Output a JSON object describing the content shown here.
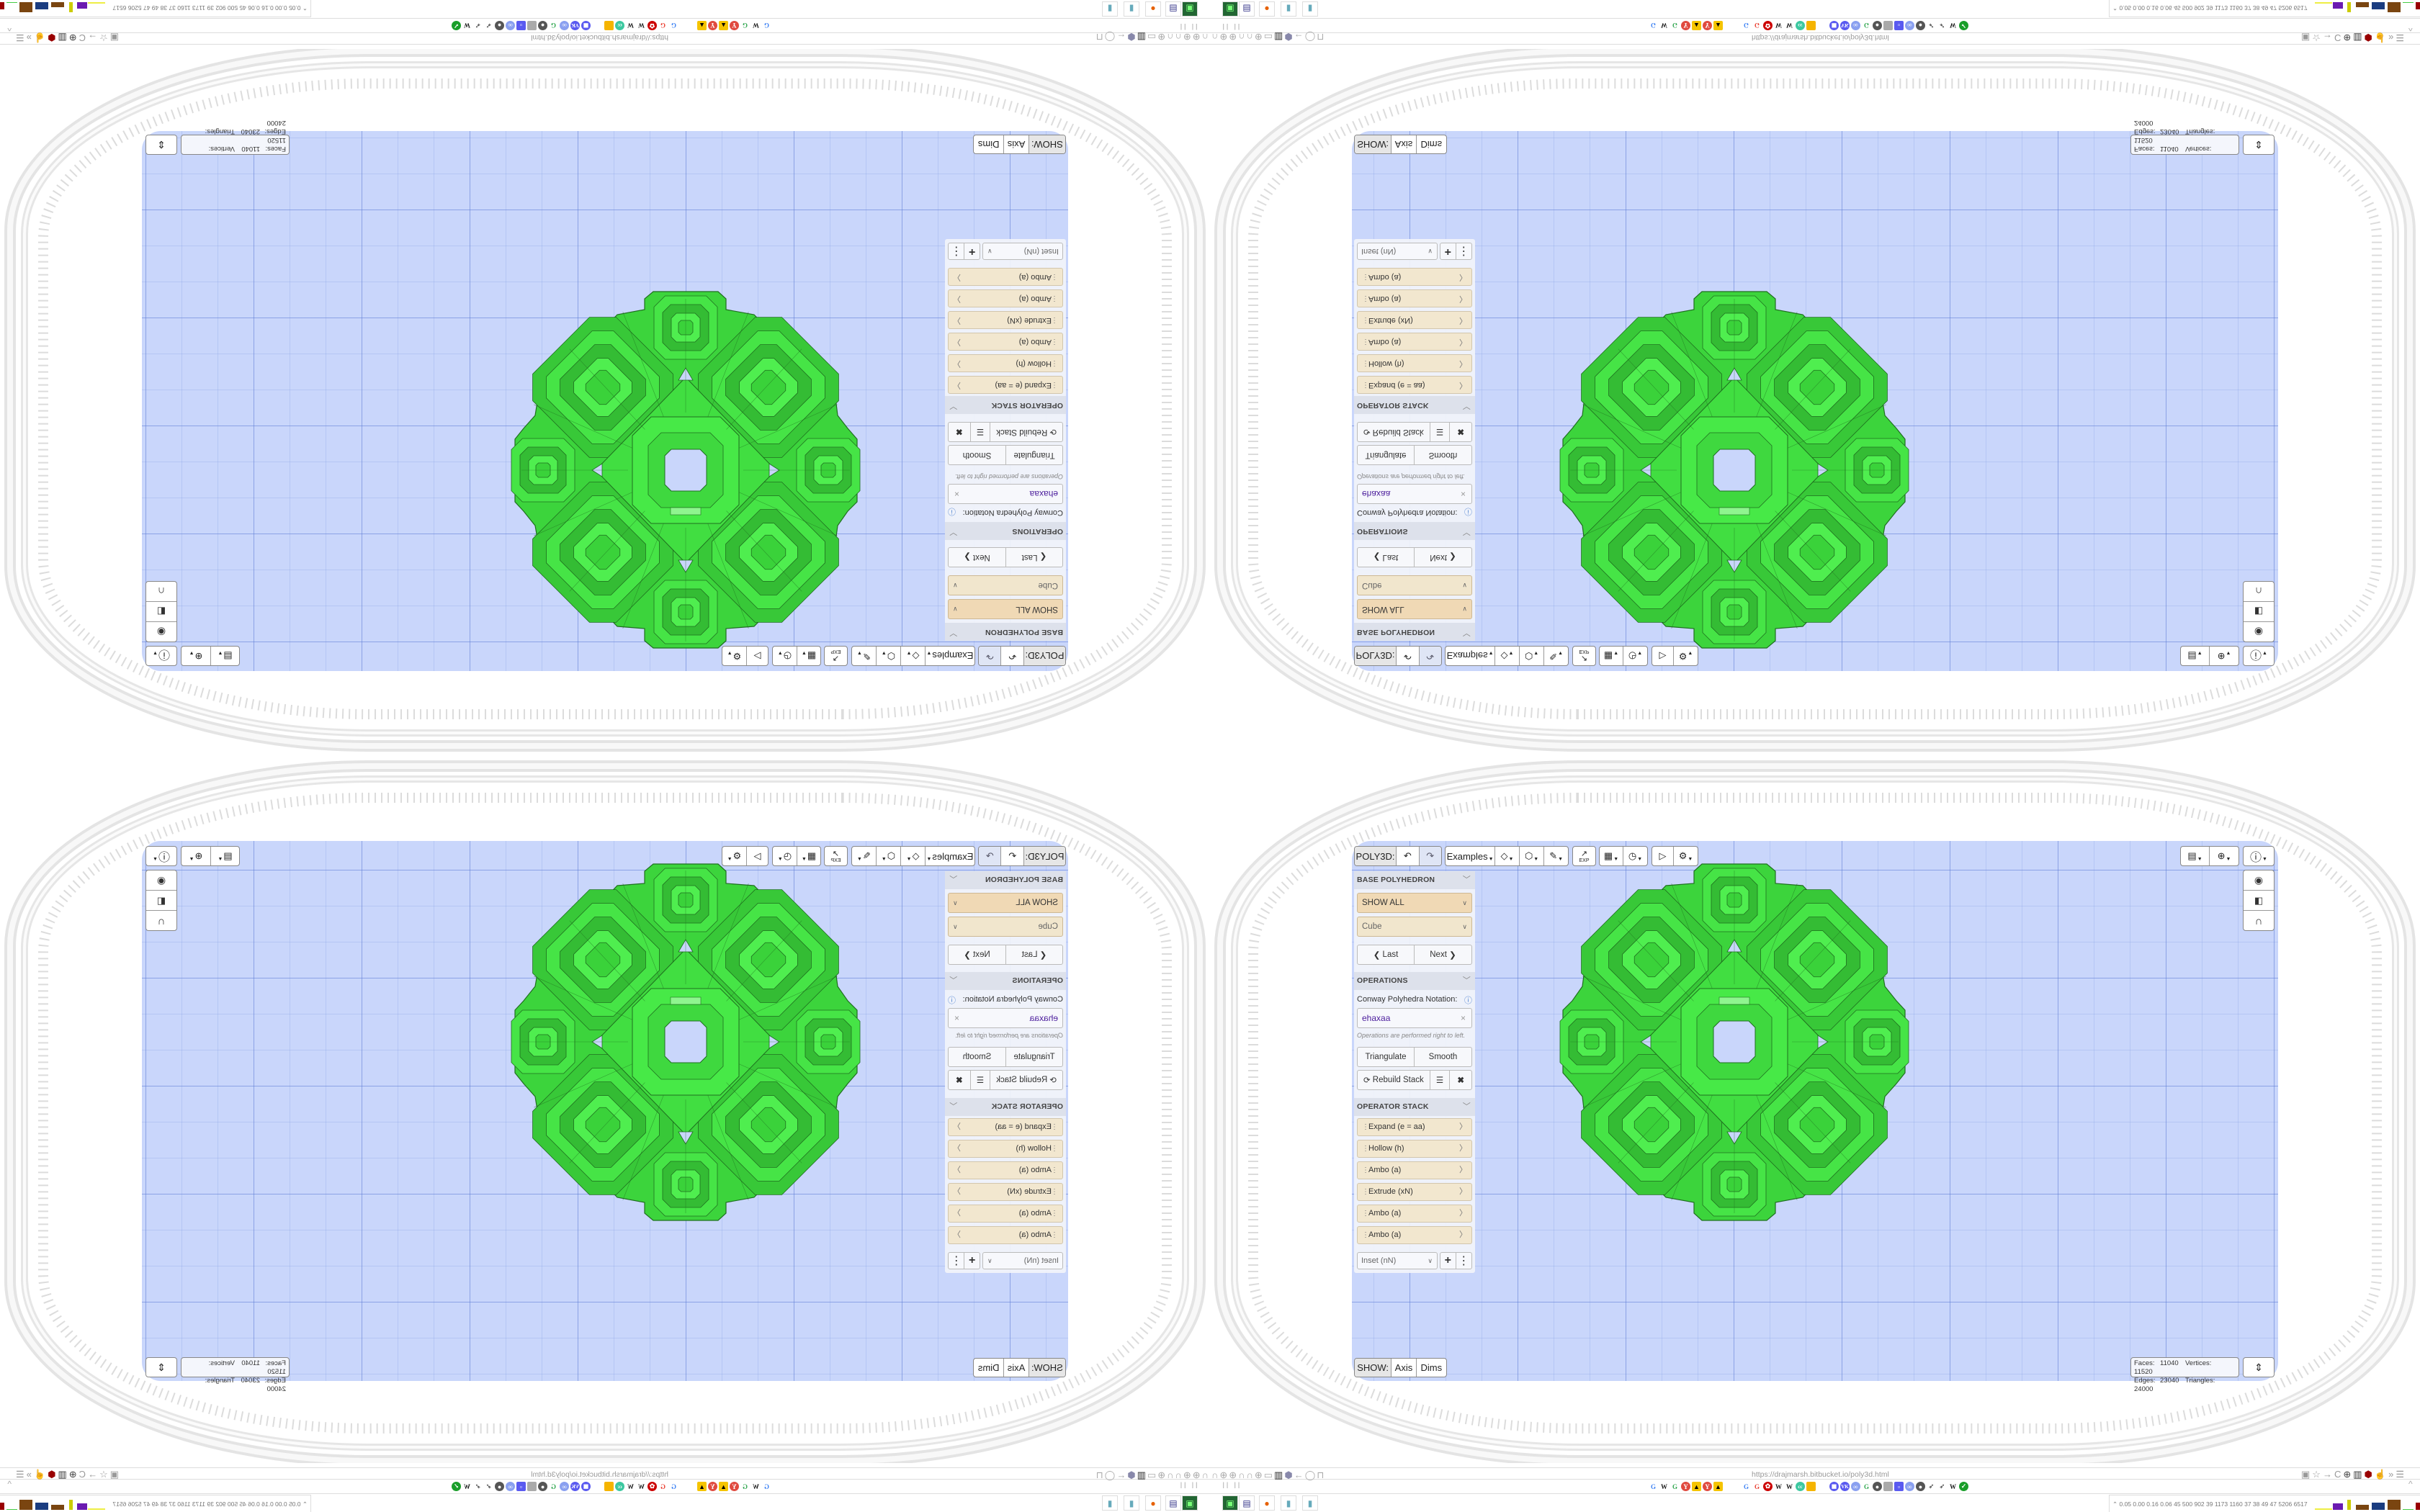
{
  "toolbar": {
    "poly3d": "POLY3D:",
    "examples": "Examples",
    "icons": [
      "undo-icon",
      "redo-icon",
      "paint-bucket-icon",
      "cube-view-icon",
      "pen-ruler-icon",
      "export-icon",
      "table-icon",
      "clock-icon",
      "play-icon",
      "gear-icon"
    ],
    "export_label": "EXP"
  },
  "right_toolbar": {
    "icons": [
      "calendar-clock-icon",
      "globe-icon",
      "info-icon",
      "eye-icon",
      "toggle-icon",
      "magnet-icon",
      "recenter-icon"
    ]
  },
  "panel": {
    "base": {
      "header": "BASE POLYHEDRON",
      "filter": "SHOW ALL",
      "shape": "Cube",
      "last": "Last",
      "next": "Next"
    },
    "operations": {
      "header": "OPERATIONS",
      "notation_label": "Conway Polyhedra Notation:",
      "notation_value": "ehaxaa",
      "hint": "Operations are performed right to left.",
      "triangulate": "Triangulate",
      "smooth": "Smooth",
      "rebuild": "Rebuild Stack"
    },
    "stack": {
      "header": "OPERATOR STACK",
      "items": [
        "Expand (e = aa)",
        "Hollow (h)",
        "Ambo (a)",
        "Extrude (xN)",
        "Ambo (a)",
        "Ambo (a)"
      ],
      "add_select": "Inset (nN)"
    }
  },
  "show": {
    "label": "SHOW:",
    "axis": "Axis",
    "dims": "Dims"
  },
  "stats": {
    "faces_label": "Faces:",
    "faces": "11040",
    "vertices_label": "Vertices:",
    "vertices": "11520",
    "edges_label": "Edges:",
    "edges": "23040",
    "triangles_label": "Triangles:",
    "triangles": "24000"
  },
  "browser": {
    "url": "https://drajmarsh.bitbucket.io/poly3d.html",
    "pause_label": "II II",
    "status_numbers": "0.05 0.00 0.16 0.06  45  500  902  39  1173 1160  37  38  49  47  5206 6517"
  },
  "colors": {
    "viewport": "#c9d6fb",
    "polyhedron": "#42dd42",
    "polyhedron_edge": "#1f6f1f",
    "filter_select": "#f0d9b5",
    "stack_item": "#f2e7cf",
    "notation_text": "#4b1d9c"
  }
}
